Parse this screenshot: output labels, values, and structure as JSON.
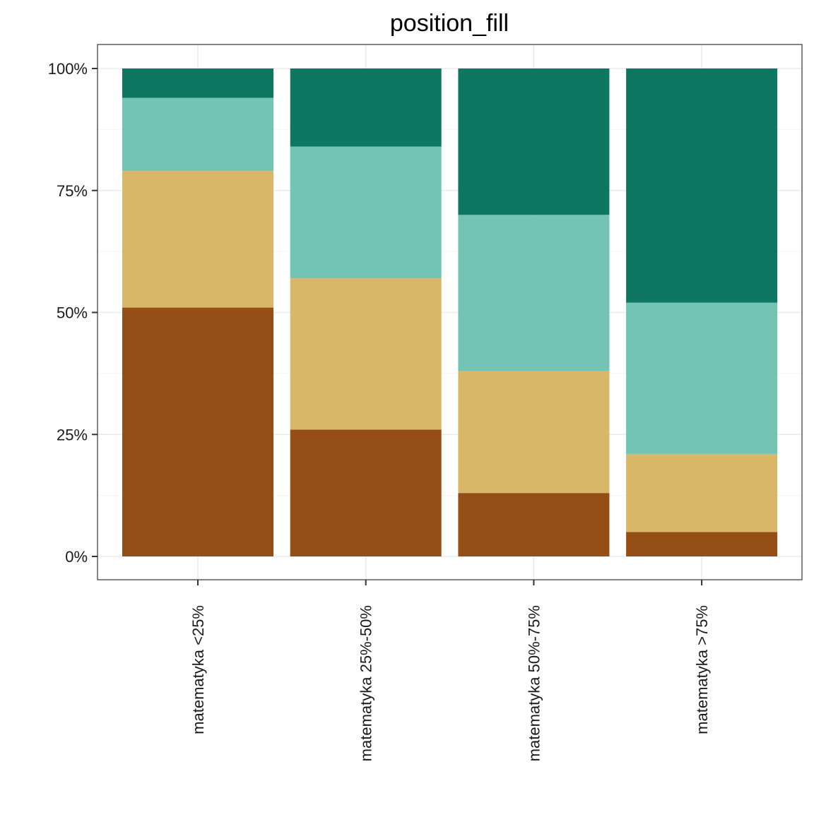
{
  "chart_data": {
    "type": "bar",
    "stacking": "fill",
    "title": "position_fill",
    "xlabel": "",
    "ylabel": "",
    "categories": [
      "matematyka <25%",
      "matematyka 25%-50%",
      "matematyka 50%-75%",
      "matematyka >75%"
    ],
    "y_ticks": [
      "0%",
      "25%",
      "50%",
      "75%",
      "100%"
    ],
    "ylim": [
      0,
      1
    ],
    "grid": true,
    "legend": "none",
    "series": [
      {
        "color": "#944E16",
        "values": [
          0.51,
          0.26,
          0.13,
          0.05
        ]
      },
      {
        "color": "#D8B769",
        "values": [
          0.28,
          0.31,
          0.25,
          0.16
        ]
      },
      {
        "color": "#73C4B4",
        "values": [
          0.15,
          0.27,
          0.32,
          0.31
        ]
      },
      {
        "color": "#0F7761",
        "values": [
          0.06,
          0.16,
          0.3,
          0.48
        ]
      }
    ]
  }
}
